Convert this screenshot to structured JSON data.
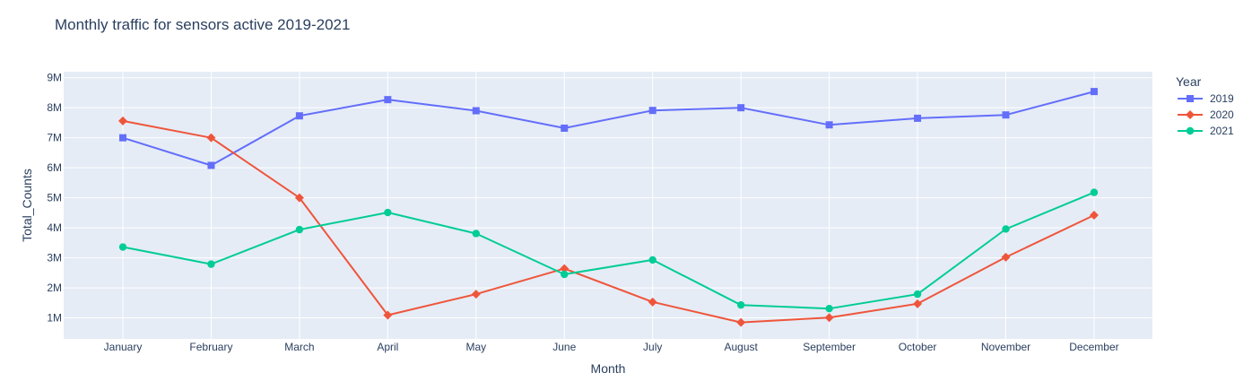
{
  "chart_data": {
    "type": "line",
    "title": "Monthly traffic for sensors active 2019-2021",
    "xlabel": "Month",
    "ylabel": "Total_Counts",
    "categories": [
      "January",
      "February",
      "March",
      "April",
      "May",
      "June",
      "July",
      "August",
      "September",
      "October",
      "November",
      "December"
    ],
    "yticks": [
      1000000,
      2000000,
      3000000,
      4000000,
      5000000,
      6000000,
      7000000,
      8000000,
      9000000
    ],
    "ytick_labels": [
      "1M",
      "2M",
      "3M",
      "4M",
      "5M",
      "6M",
      "7M",
      "8M",
      "9M"
    ],
    "ylim": [
      300000,
      9200000
    ],
    "grid": true,
    "legend": {
      "title": "Year",
      "placement": "right"
    },
    "series": [
      {
        "name": "2019",
        "color": "#636efa",
        "marker": "square",
        "values": [
          7000000,
          6080000,
          7730000,
          8270000,
          7900000,
          7320000,
          7910000,
          8000000,
          7430000,
          7650000,
          7760000,
          8540000
        ]
      },
      {
        "name": "2020",
        "color": "#ef553b",
        "marker": "diamond",
        "values": [
          7560000,
          7000000,
          5000000,
          1090000,
          1790000,
          2640000,
          1530000,
          850000,
          1010000,
          1470000,
          3020000,
          4420000
        ]
      },
      {
        "name": "2021",
        "color": "#00cc96",
        "marker": "circle",
        "values": [
          3360000,
          2790000,
          3940000,
          4510000,
          3810000,
          2450000,
          2930000,
          1430000,
          1310000,
          1790000,
          3960000,
          5180000
        ]
      }
    ]
  }
}
